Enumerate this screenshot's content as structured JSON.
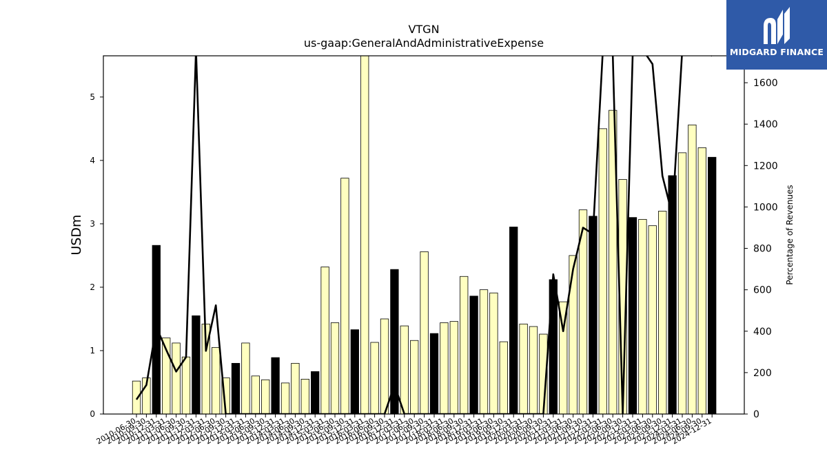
{
  "chart_data": {
    "type": "bar",
    "title": "VTGN",
    "subtitle": "us-gaap:GeneralAndAdministrativeExpense",
    "ylabel": "USDm",
    "y2label": "Percentage of Revenues",
    "ylim": [
      0,
      5.65
    ],
    "y2lim": [
      0,
      1730
    ],
    "yticks": [
      0,
      1,
      2,
      3,
      4,
      5
    ],
    "y2ticks": [
      0,
      200,
      400,
      600,
      800,
      1000,
      1200,
      1400,
      1600
    ],
    "categories": [
      "2010-06-30",
      "2010-09-30",
      "2010-12-31",
      "2011-03-31",
      "2011-06-30",
      "2011-09-30",
      "2011-12-31",
      "2012-03-31",
      "2012-06-30",
      "2012-09-30",
      "2012-12-31",
      "2013-03-31",
      "2013-06-30",
      "2013-09-30",
      "2013-12-31",
      "2014-03-31",
      "2014-06-30",
      "2014-09-30",
      "2014-12-31",
      "2015-03-31",
      "2015-06-30",
      "2015-09-30",
      "2015-12-31",
      "2016-03-31",
      "2016-06-30",
      "2016-09-30",
      "2016-12-31",
      "2017-03-31",
      "2017-06-30",
      "2017-09-30",
      "2017-12-31",
      "2018-03-31",
      "2018-06-30",
      "2018-09-30",
      "2018-12-31",
      "2019-03-31",
      "2019-06-30",
      "2019-09-30",
      "2019-12-31",
      "2020-03-31",
      "2020-06-30",
      "2020-09-30",
      "2020-12-31",
      "2021-03-31",
      "2021-06-30",
      "2021-09-30",
      "2021-12-31",
      "2022-03-31",
      "2022-06-30",
      "2022-09-30",
      "2022-12-31",
      "2023-03-31",
      "2023-06-30",
      "2023-09-30",
      "2023-12-31",
      "2024-03-31",
      "2024-06-30",
      "2024-09-30",
      "2024-12-31"
    ],
    "series": [
      {
        "values": [
          0.52,
          0.57,
          2.66,
          1.2,
          1.12,
          0.9,
          1.55,
          1.42,
          1.05,
          0.57,
          0.8,
          1.12,
          0.6,
          0.54,
          0.89,
          0.49,
          0.8,
          0.55,
          0.67,
          2.32,
          1.44,
          3.72,
          1.33,
          5.65,
          1.13,
          1.5,
          2.28,
          1.39,
          1.16,
          2.56,
          1.27,
          1.44,
          1.46,
          2.17,
          1.86,
          1.96,
          1.91,
          1.14,
          2.95,
          1.42,
          1.38,
          1.26,
          2.12,
          1.77,
          2.5,
          3.22,
          3.12,
          4.5,
          4.79,
          3.7,
          3.1,
          3.07,
          2.97,
          3.2,
          3.76,
          4.12,
          4.56,
          4.2,
          4.05
        ],
        "fiscal_year_end": [
          false,
          false,
          true,
          false,
          false,
          false,
          true,
          false,
          false,
          false,
          true,
          false,
          false,
          false,
          true,
          false,
          false,
          false,
          true,
          false,
          false,
          false,
          true,
          false,
          false,
          false,
          true,
          false,
          false,
          false,
          true,
          false,
          false,
          false,
          true,
          false,
          false,
          false,
          true,
          false,
          false,
          false,
          true,
          false,
          false,
          false,
          true,
          false,
          false,
          false,
          true,
          false,
          false,
          false,
          true,
          false,
          false,
          false,
          true
        ]
      },
      {
        "axis": "right",
        "type": "line",
        "values": [
          70,
          140,
          420,
          310,
          205,
          275,
          1760,
          305,
          525,
          0,
          0,
          0,
          0,
          0,
          0,
          0,
          0,
          0,
          0,
          0,
          0,
          0,
          0,
          0,
          0,
          0,
          140,
          0,
          0,
          0,
          0,
          0,
          0,
          0,
          0,
          0,
          0,
          0,
          0,
          0,
          0,
          0,
          675,
          400,
          700,
          900,
          870,
          1760,
          1730,
          0,
          1730,
          1760,
          1690,
          1150,
          960,
          1760,
          1760,
          1760,
          1730
        ]
      }
    ],
    "colors": {
      "bar": "#ffffc0",
      "bar_fye": "#000000",
      "line": "#000000"
    },
    "grid": false,
    "legend": "none"
  },
  "logo": {
    "text": "MIDGARD FINANCE",
    "bg": "#2f5aa8",
    "fg": "#ffffff"
  }
}
